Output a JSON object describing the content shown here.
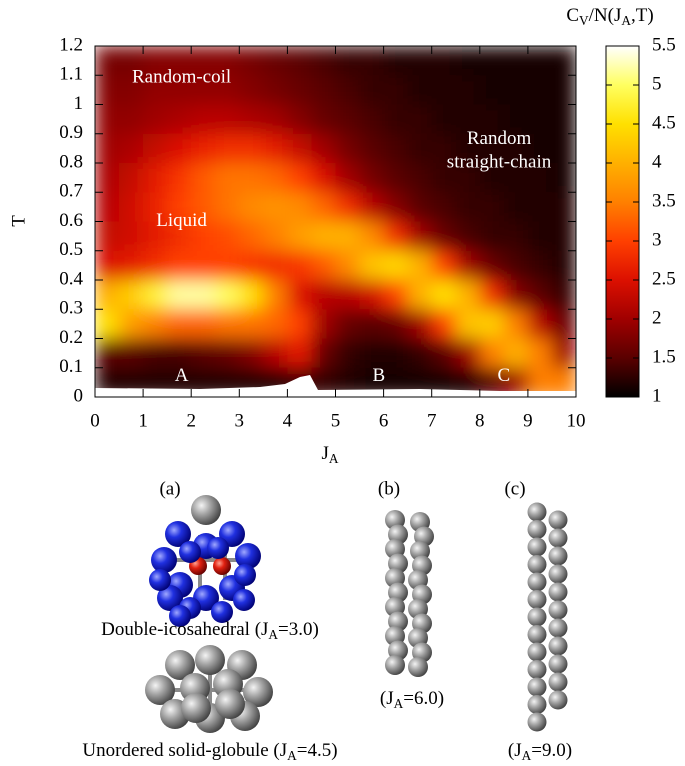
{
  "chart_data": {
    "type": "heatmap",
    "x": [
      0.25,
      0.75,
      1.25,
      1.75,
      2.25,
      2.75,
      3.25,
      3.75,
      4.25,
      4.75,
      5.25,
      5.75,
      6.25,
      6.75,
      7.25,
      7.75,
      8.25,
      8.75,
      9.25,
      9.75
    ],
    "y": [
      1.15,
      1.05,
      0.95,
      0.85,
      0.75,
      0.65,
      0.55,
      0.45,
      0.35,
      0.25,
      0.15,
      0.05
    ],
    "z": [
      [
        1.7,
        1.7,
        1.8,
        1.8,
        1.8,
        1.8,
        1.7,
        1.6,
        1.5,
        1.4,
        1.3,
        1.3,
        1.2,
        1.2,
        1.2,
        1.1,
        1.1,
        1.1,
        1.1,
        1.1
      ],
      [
        1.8,
        1.8,
        1.9,
        1.9,
        1.9,
        1.9,
        1.8,
        1.7,
        1.6,
        1.5,
        1.4,
        1.3,
        1.3,
        1.2,
        1.2,
        1.2,
        1.1,
        1.1,
        1.1,
        1.1
      ],
      [
        1.9,
        1.9,
        2.0,
        2.1,
        2.2,
        2.2,
        2.1,
        2.0,
        1.8,
        1.6,
        1.5,
        1.4,
        1.3,
        1.3,
        1.2,
        1.2,
        1.2,
        1.1,
        1.1,
        1.1
      ],
      [
        2.0,
        2.1,
        2.3,
        2.5,
        2.7,
        2.8,
        2.8,
        2.6,
        2.3,
        2.0,
        1.7,
        1.5,
        1.4,
        1.3,
        1.3,
        1.2,
        1.2,
        1.2,
        1.1,
        1.1
      ],
      [
        2.1,
        2.3,
        2.6,
        2.9,
        3.2,
        3.4,
        3.4,
        3.3,
        3.0,
        2.5,
        2.0,
        1.7,
        1.5,
        1.4,
        1.3,
        1.3,
        1.2,
        1.2,
        1.2,
        1.1
      ],
      [
        2.2,
        2.4,
        2.7,
        3.0,
        3.2,
        3.4,
        3.6,
        3.7,
        3.6,
        3.3,
        2.8,
        2.2,
        1.8,
        1.5,
        1.4,
        1.3,
        1.3,
        1.2,
        1.2,
        1.2
      ],
      [
        2.3,
        2.4,
        2.6,
        2.8,
        3.0,
        3.1,
        3.3,
        3.5,
        3.8,
        4.0,
        4.0,
        3.6,
        2.8,
        2.0,
        1.6,
        1.4,
        1.3,
        1.3,
        1.2,
        1.2
      ],
      [
        2.5,
        2.6,
        2.8,
        3.0,
        3.0,
        3.0,
        2.9,
        2.8,
        2.9,
        3.2,
        3.6,
        4.2,
        4.4,
        4.0,
        3.0,
        2.0,
        1.6,
        1.4,
        1.3,
        1.2
      ],
      [
        4.0,
        4.3,
        4.8,
        5.2,
        5.2,
        5.0,
        4.5,
        3.5,
        2.5,
        2.2,
        2.2,
        2.4,
        3.0,
        4.0,
        4.5,
        4.0,
        2.8,
        1.8,
        1.5,
        1.3
      ],
      [
        4.5,
        3.8,
        3.5,
        3.3,
        3.3,
        3.4,
        3.4,
        3.3,
        3.0,
        2.0,
        1.6,
        1.5,
        1.6,
        2.0,
        3.0,
        4.2,
        4.3,
        3.5,
        2.2,
        1.6
      ],
      [
        1.5,
        1.5,
        1.4,
        1.4,
        1.5,
        1.6,
        1.8,
        2.2,
        2.6,
        1.6,
        1.3,
        1.2,
        1.2,
        1.3,
        1.5,
        2.0,
        3.5,
        4.0,
        3.5,
        2.0
      ],
      [
        1.2,
        1.2,
        1.2,
        1.2,
        1.2,
        1.2,
        1.2,
        1.2,
        1.3,
        1.3,
        1.2,
        1.1,
        1.1,
        1.1,
        1.1,
        1.2,
        1.5,
        2.0,
        3.5,
        3.5
      ]
    ],
    "xlim": [
      0,
      10
    ],
    "ylim": [
      0,
      1.2
    ],
    "xticks": [
      0,
      1,
      2,
      3,
      4,
      5,
      6,
      7,
      8,
      9,
      10
    ],
    "yticks": [
      0,
      0.1,
      0.2,
      0.3,
      0.4,
      0.5,
      0.6,
      0.7,
      0.8,
      0.9,
      1,
      1.1,
      1.2
    ],
    "xlabel": [
      "J",
      "A"
    ],
    "ylabel": "T",
    "colorbar": {
      "label": [
        "C",
        "V",
        "/N(J",
        "A",
        ",T)"
      ],
      "lim": [
        1,
        5.5
      ],
      "ticks": [
        1,
        1.5,
        2,
        2.5,
        3,
        3.5,
        4,
        4.5,
        5,
        5.5
      ]
    },
    "colormap": [
      "#000000",
      "#5a0000",
      "#a00000",
      "#dc1000",
      "#ff4000",
      "#ff8000",
      "#ffb000",
      "#ffe000",
      "#ffff60",
      "#ffffff"
    ],
    "annotations": [
      "Random-coil",
      "Liquid",
      "Random",
      "straight-chain",
      "A",
      "B",
      "C"
    ]
  },
  "panels": [
    {
      "label": "(a)",
      "captions": [
        [
          "Double-icosahedral (J",
          "A",
          "=3.0)"
        ],
        [
          "Unordered solid-globule (J",
          "A",
          "=4.5)"
        ]
      ]
    },
    {
      "label": "(b)",
      "captions": [
        [
          "(J",
          "A",
          "=6.0)"
        ]
      ]
    },
    {
      "label": "(c)",
      "captions": [
        [
          "(J",
          "A",
          "=9.0)"
        ]
      ]
    }
  ]
}
